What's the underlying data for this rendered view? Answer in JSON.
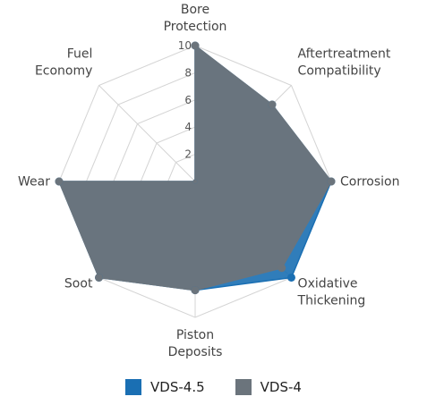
{
  "chart_data": {
    "type": "radar",
    "categories": [
      "Bore Protection",
      "Aftertreatment Compatibility",
      "Corrosion",
      "Oxidative Thickening",
      "Piston Deposits",
      "Soot",
      "Wear",
      "Fuel Economy"
    ],
    "category_lines": [
      [
        "Bore",
        "Protection"
      ],
      [
        "Aftertreatment",
        "Compatibility"
      ],
      [
        "Corrosion"
      ],
      [
        "Oxidative",
        "Thickening"
      ],
      [
        "Piston",
        "Deposits"
      ],
      [
        "Soot"
      ],
      [
        "Wear"
      ],
      [
        "Fuel",
        "Economy"
      ]
    ],
    "series": [
      {
        "name": "VDS-4.5",
        "color": "#1a6fb3",
        "values": [
          10,
          8,
          10,
          10,
          8,
          10,
          10,
          0
        ]
      },
      {
        "name": "VDS-4",
        "color": "#6b747c",
        "values": [
          10,
          8,
          10,
          9,
          8,
          10,
          10,
          0
        ]
      }
    ],
    "r_range": [
      0,
      10
    ],
    "r_ticks": [
      "2",
      "4",
      "6",
      "8",
      "10"
    ],
    "grid": true,
    "legend_position": "bottom"
  }
}
